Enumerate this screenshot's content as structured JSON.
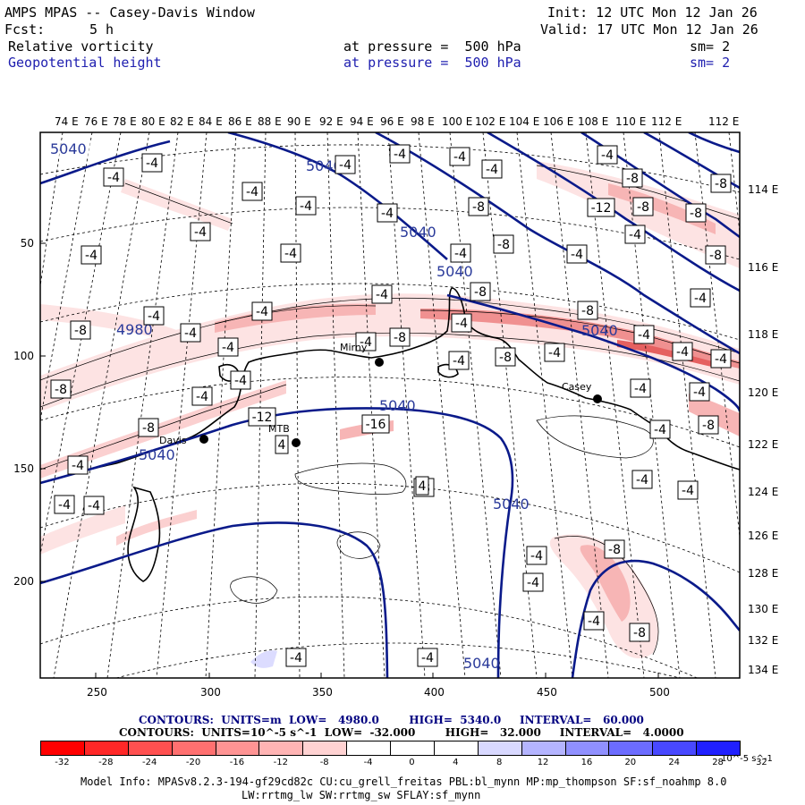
{
  "header": {
    "title": "AMPS MPAS -- Casey-Davis Window",
    "init": "Init: 12 UTC Mon 12 Jan 26",
    "fcst_label": "Fcst:",
    "fcst_value": "5 h",
    "valid": "Valid: 17 UTC Mon 12 Jan 26",
    "field1_name": "Relative vorticity",
    "field1_pressure": "at pressure =  500 hPa",
    "field1_sm": "sm= 2",
    "field2_name": "Geopotential height",
    "field2_pressure": "at pressure =  500 hPa",
    "field2_sm": "sm= 2"
  },
  "colors": {
    "height_contour": "#0a1a8a",
    "vorticity_neg": [
      "#ffe4e4",
      "#fccaca",
      "#f8a8a8",
      "#f08080",
      "#e85858",
      "#e03030",
      "#ff0000"
    ],
    "coast": "#000000"
  },
  "map": {
    "top_longitudes": [
      "74 E",
      "76 E",
      "78 E",
      "80 E",
      "82 E",
      "84 E",
      "86 E",
      "88 E",
      "90 E",
      "92 E",
      "94 E",
      "96 E",
      "98 E",
      "100 E",
      "102 E",
      "104 E",
      "106 E",
      "108 E",
      "110 E",
      "112 E"
    ],
    "right_longitudes": [
      "114 E",
      "116 E",
      "118 E",
      "120 E",
      "122 E",
      "124 E",
      "126 E",
      "128 E",
      "130 E",
      "132 E",
      "134 E"
    ],
    "bottom_ticks": [
      "250",
      "300",
      "350",
      "400",
      "450",
      "500"
    ],
    "left_ticks": [
      "50",
      "100",
      "150",
      "200"
    ],
    "stations": [
      "Davis",
      "Mirny",
      "MTB",
      "Casey"
    ],
    "height_labels": [
      "5040",
      "5040",
      "5040",
      "5040",
      "4980",
      "5040",
      "5040",
      "5040",
      "5040"
    ],
    "vort_labels": [
      "-4",
      "-4",
      "-4",
      "-4",
      "-4",
      "-4",
      "-4",
      "-4",
      "-8",
      "-4",
      "-8",
      "-4",
      "-8",
      "-12",
      "-8",
      "-8",
      "-4",
      "-4",
      "-4",
      "-8",
      "-4",
      "-4",
      "-8",
      "-4",
      "-4",
      "-8",
      "-4",
      "-4",
      "-4",
      "-4",
      "-8",
      "-8",
      "-4",
      "-8",
      "-4",
      "-4",
      "-4",
      "-4",
      "-4",
      "-4",
      "-4",
      "-8",
      "-8",
      "-4",
      "-4",
      "-12",
      "-16",
      "-8",
      "-4",
      "-8",
      "-4",
      "-4",
      "-4",
      "-8",
      "-4",
      "-4",
      "-4",
      "-4",
      "-4"
    ]
  },
  "contours": {
    "line1": "CONTOURS:  UNITS=m  LOW=   4980.0        HIGH=  5340.0     INTERVAL=   60.000",
    "line2": "CONTOURS:  UNITS=10^-5 s^-1  LOW=  -32.000        HIGH=   32.000     INTERVAL=   4.0000"
  },
  "colorbar": {
    "labels": [
      "-32",
      "-28",
      "-24",
      "-20",
      "-16",
      "-12",
      "-8",
      "-4",
      "0",
      "4",
      "8",
      "12",
      "16",
      "20",
      "24",
      "28",
      "32"
    ],
    "colors": [
      "#ff0000",
      "#ff2828",
      "#ff5050",
      "#ff7070",
      "#ff9494",
      "#ffb4b4",
      "#ffd2d2",
      "#ffffff",
      "#ffffff",
      "#ffffff",
      "#d8d8ff",
      "#b4b4ff",
      "#9090ff",
      "#6c6cff",
      "#4848ff",
      "#2020ff"
    ],
    "unit": "10^-5 s^-1"
  },
  "footer": {
    "info1": "Model Info: MPASv8.2.3-194-gf29cd82c CU:cu_grell_freitas PBL:bl_mynn MP:mp_thompson SF:sf_noahmp 8.0",
    "info2": "LW:rrtmg_lw SW:rrtmg_sw SFLAY:sf_mynn"
  }
}
